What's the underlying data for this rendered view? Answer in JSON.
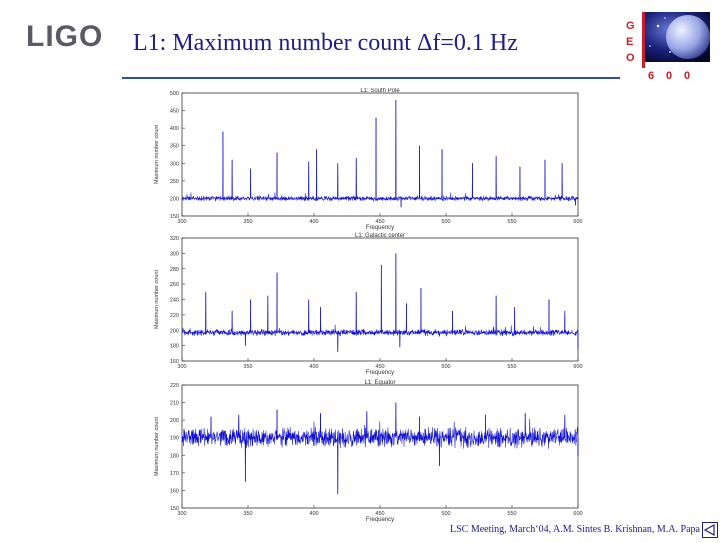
{
  "slide": {
    "logo_text": "LIGO",
    "title": "L1: Maximum number count Δf=0.1 Hz",
    "footer": "LSC Meeting, March‘04, A.M. Sintes B. Krishnan, M.A. Papa"
  },
  "geo_logo": {
    "letters": [
      "G",
      "E",
      "O"
    ],
    "number": [
      "6",
      "0",
      "0"
    ],
    "accent": "#c8202a"
  },
  "colors": {
    "series": "#1010d0",
    "title": "#1d1d8c",
    "rule": "#2a4fa8"
  },
  "chart_data": [
    {
      "type": "line",
      "title": "L1: South Pole",
      "xlabel": "Frequency",
      "ylabel": "Maximum number count",
      "xlim": [
        300,
        600
      ],
      "ylim": [
        150,
        500
      ],
      "xticks": [
        300,
        350,
        400,
        450,
        500,
        550,
        600
      ],
      "yticks": [
        150,
        200,
        250,
        300,
        350,
        400,
        450,
        500
      ],
      "baseline": 200,
      "noise": 5,
      "peaks": [
        [
          331,
          390
        ],
        [
          338,
          310
        ],
        [
          352,
          285
        ],
        [
          372,
          330
        ],
        [
          396,
          305
        ],
        [
          402,
          340
        ],
        [
          418,
          300
        ],
        [
          432,
          315
        ],
        [
          447,
          430
        ],
        [
          462,
          480
        ],
        [
          480,
          350
        ],
        [
          497,
          340
        ],
        [
          520,
          300
        ],
        [
          538,
          320
        ],
        [
          556,
          290
        ],
        [
          575,
          310
        ],
        [
          588,
          300
        ]
      ],
      "dips": [
        [
          466,
          175
        ],
        [
          598,
          180
        ]
      ]
    },
    {
      "type": "line",
      "title": "L1: Galactic center",
      "xlabel": "Frequency",
      "ylabel": "Maximum number count",
      "xlim": [
        300,
        600
      ],
      "ylim": [
        160,
        320
      ],
      "xticks": [
        300,
        350,
        400,
        450,
        500,
        550,
        600
      ],
      "yticks": [
        160,
        180,
        200,
        220,
        240,
        260,
        280,
        300,
        320
      ],
      "baseline": 197,
      "noise": 3,
      "peaks": [
        [
          318,
          250
        ],
        [
          338,
          225
        ],
        [
          352,
          240
        ],
        [
          365,
          245
        ],
        [
          372,
          275
        ],
        [
          396,
          240
        ],
        [
          405,
          230
        ],
        [
          432,
          250
        ],
        [
          451,
          285
        ],
        [
          462,
          300
        ],
        [
          470,
          235
        ],
        [
          481,
          255
        ],
        [
          505,
          225
        ],
        [
          538,
          245
        ],
        [
          552,
          230
        ],
        [
          578,
          240
        ],
        [
          590,
          225
        ]
      ],
      "dips": [
        [
          348,
          180
        ],
        [
          418,
          172
        ],
        [
          465,
          178
        ],
        [
          600,
          176
        ]
      ]
    },
    {
      "type": "line",
      "title": "L1: Equator",
      "xlabel": "Frequency",
      "ylabel": "Maximum number count",
      "xlim": [
        300,
        600
      ],
      "ylim": [
        150,
        220
      ],
      "xticks": [
        300,
        350,
        400,
        450,
        500,
        550,
        600
      ],
      "yticks": [
        150,
        160,
        170,
        180,
        190,
        200,
        210,
        220
      ],
      "baseline": 190,
      "noise": 4,
      "peaks": [
        [
          322,
          202
        ],
        [
          343,
          203
        ],
        [
          372,
          206
        ],
        [
          405,
          204
        ],
        [
          440,
          205
        ],
        [
          462,
          210
        ],
        [
          480,
          202
        ],
        [
          530,
          203
        ],
        [
          560,
          204
        ],
        [
          590,
          203
        ]
      ],
      "dips": [
        [
          348,
          165
        ],
        [
          418,
          158
        ],
        [
          495,
          174
        ],
        [
          600,
          180
        ]
      ]
    }
  ]
}
